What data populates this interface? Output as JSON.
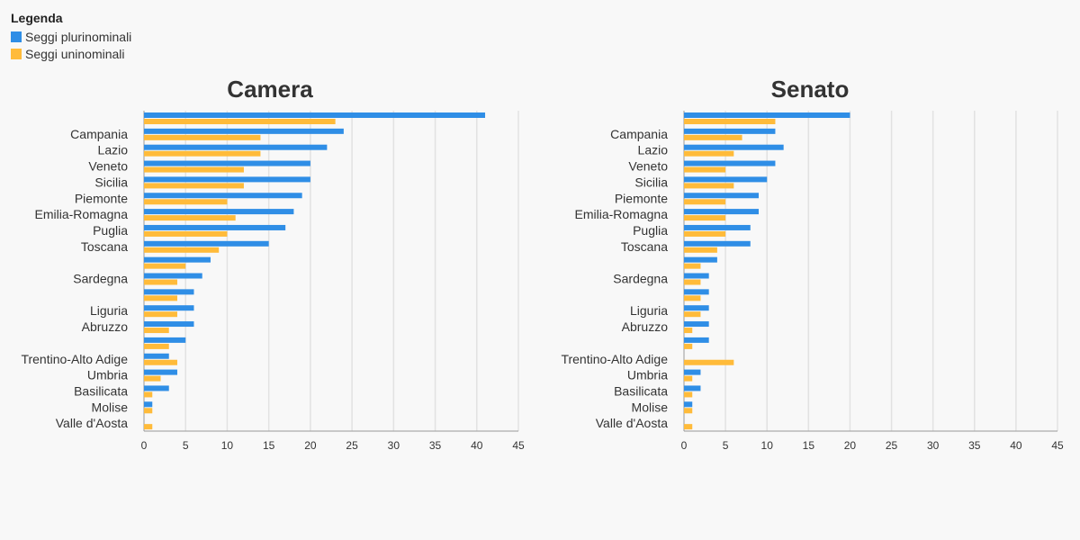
{
  "legend": {
    "title": "Legenda",
    "items": [
      {
        "label": "Seggi plurinominali",
        "color": "#2f8ee6"
      },
      {
        "label": "Seggi uninominali",
        "color": "#ffbb3a"
      }
    ]
  },
  "chart_data": [
    {
      "type": "bar",
      "orientation": "horizontal",
      "title": "Camera",
      "categories": [
        "",
        "Campania",
        "Lazio",
        "Veneto",
        "Sicilia",
        "Piemonte",
        "Emilia-Romagna",
        "Puglia",
        "Toscana",
        "",
        "Sardegna",
        "",
        "Liguria",
        "Abruzzo",
        "",
        "Trentino-Alto Adige",
        "Umbria",
        "Basilicata",
        "Molise",
        "Valle d'Aosta"
      ],
      "series": [
        {
          "name": "Seggi plurinominali",
          "color": "#2f8ee6",
          "values": [
            41,
            24,
            22,
            20,
            20,
            19,
            18,
            17,
            15,
            8,
            7,
            6,
            6,
            6,
            5,
            3,
            4,
            3,
            1,
            0
          ]
        },
        {
          "name": "Seggi uninominali",
          "color": "#ffbb3a",
          "values": [
            23,
            14,
            14,
            12,
            12,
            10,
            11,
            10,
            9,
            5,
            4,
            4,
            4,
            3,
            3,
            4,
            2,
            1,
            1,
            1
          ]
        }
      ],
      "xlim": [
        0,
        45
      ],
      "xticks": [
        0,
        5,
        10,
        15,
        20,
        25,
        30,
        35,
        40,
        45
      ],
      "grid": true
    },
    {
      "type": "bar",
      "orientation": "horizontal",
      "title": "Senato",
      "categories": [
        "",
        "Campania",
        "Lazio",
        "Veneto",
        "Sicilia",
        "Piemonte",
        "Emilia-Romagna",
        "Puglia",
        "Toscana",
        "",
        "Sardegna",
        "",
        "Liguria",
        "Abruzzo",
        "",
        "Trentino-Alto Adige",
        "Umbria",
        "Basilicata",
        "Molise",
        "Valle d'Aosta"
      ],
      "series": [
        {
          "name": "Seggi plurinominali",
          "color": "#2f8ee6",
          "values": [
            20,
            11,
            12,
            11,
            10,
            9,
            9,
            8,
            8,
            4,
            3,
            3,
            3,
            3,
            3,
            0,
            2,
            2,
            1,
            0
          ]
        },
        {
          "name": "Seggi uninominali",
          "color": "#ffbb3a",
          "values": [
            11,
            7,
            6,
            5,
            6,
            5,
            5,
            5,
            4,
            2,
            2,
            2,
            2,
            1,
            1,
            6,
            1,
            1,
            1,
            1
          ]
        }
      ],
      "xlim": [
        0,
        45
      ],
      "xticks": [
        0,
        5,
        10,
        15,
        20,
        25,
        30,
        35,
        40,
        45
      ],
      "grid": true
    }
  ]
}
